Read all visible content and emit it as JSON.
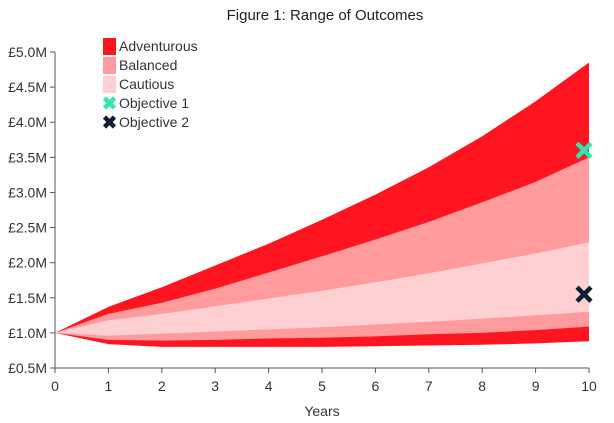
{
  "chart_data": {
    "type": "area",
    "title": "Figure 1: Range of Outcomes",
    "xlabel": "Years",
    "ylabel": "",
    "x": [
      0,
      1,
      2,
      3,
      4,
      5,
      6,
      7,
      8,
      9,
      10
    ],
    "xlim": [
      0,
      10
    ],
    "ylim": [
      0.5,
      5.0
    ],
    "x_ticks": [
      "0",
      "1",
      "2",
      "3",
      "4",
      "5",
      "6",
      "7",
      "8",
      "9",
      "10"
    ],
    "y_ticks": [
      {
        "value": 0.5,
        "label": "£0.5M"
      },
      {
        "value": 1.0,
        "label": "£1.0M"
      },
      {
        "value": 1.5,
        "label": "£1.5M"
      },
      {
        "value": 2.0,
        "label": "£2.0M"
      },
      {
        "value": 2.5,
        "label": "£2.5M"
      },
      {
        "value": 3.0,
        "label": "£3.0M"
      },
      {
        "value": 3.5,
        "label": "£3.5M"
      },
      {
        "value": 4.0,
        "label": "£4.0M"
      },
      {
        "value": 4.5,
        "label": "£4.5M"
      },
      {
        "value": 5.0,
        "label": "£5.0M"
      }
    ],
    "grid": false,
    "legend_position": "top-left",
    "series": [
      {
        "name": "Adventurous",
        "color": "#ff1520",
        "upper": [
          1.0,
          1.37,
          1.65,
          1.96,
          2.27,
          2.61,
          2.97,
          3.36,
          3.8,
          4.3,
          4.85
        ],
        "lower": [
          1.0,
          0.84,
          0.8,
          0.8,
          0.8,
          0.8,
          0.81,
          0.82,
          0.83,
          0.85,
          0.88
        ]
      },
      {
        "name": "Balanced",
        "color": "#ff9a9d",
        "upper": [
          1.0,
          1.27,
          1.43,
          1.63,
          1.86,
          2.09,
          2.33,
          2.58,
          2.86,
          3.15,
          3.5
        ],
        "lower": [
          1.0,
          0.9,
          0.89,
          0.9,
          0.92,
          0.93,
          0.95,
          0.98,
          1.0,
          1.04,
          1.09
        ]
      },
      {
        "name": "Cautious",
        "color": "#ffd0d2",
        "upper": [
          1.0,
          1.18,
          1.27,
          1.38,
          1.49,
          1.6,
          1.72,
          1.85,
          1.99,
          2.13,
          2.29
        ],
        "lower": [
          1.0,
          0.96,
          0.99,
          1.02,
          1.05,
          1.08,
          1.12,
          1.16,
          1.2,
          1.25,
          1.3
        ]
      }
    ],
    "markers": [
      {
        "name": "Objective 1",
        "x": 10,
        "y": 3.6,
        "color": "#2ee8b0"
      },
      {
        "name": "Objective 2",
        "x": 10,
        "y": 1.55,
        "color": "#0f1f33"
      }
    ]
  }
}
